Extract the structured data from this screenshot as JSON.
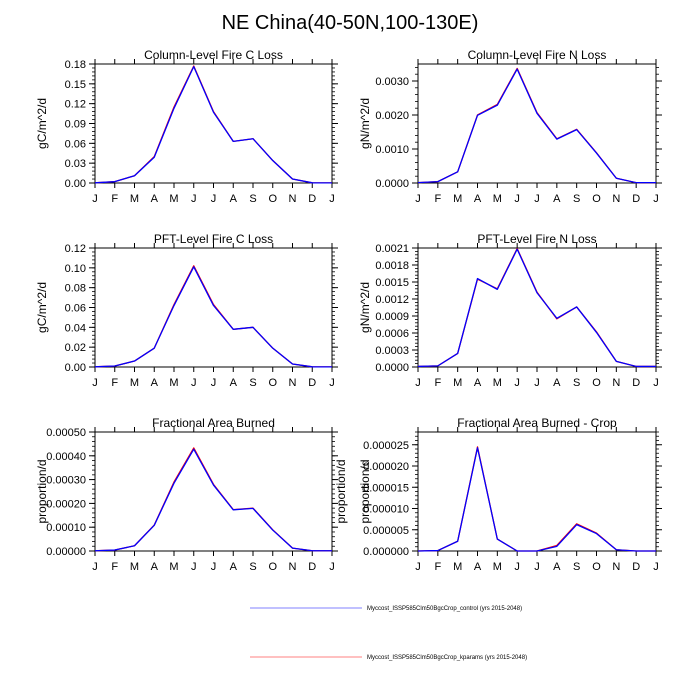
{
  "title": "NE China(40-50N,100-130E)",
  "colors": {
    "control": "#0000ff",
    "kparams": "#ff0000",
    "axis": "#000000"
  },
  "chart_data": [
    {
      "type": "line",
      "title": "Column-Level Fire C Loss",
      "ylabel": "gC/m^2/d",
      "xlabel": "",
      "x": [
        "J",
        "F",
        "M",
        "A",
        "M",
        "J",
        "J",
        "A",
        "S",
        "O",
        "N",
        "D",
        "J"
      ],
      "ylim": [
        0,
        0.18
      ],
      "yticks": [
        0.0,
        0.03,
        0.06,
        0.09,
        0.12,
        0.15,
        0.18
      ],
      "ytick_labels": [
        "0.00",
        "0.03",
        "0.06",
        "0.09",
        "0.12",
        "0.15",
        "0.18"
      ],
      "minor_per_major": 4,
      "series": [
        {
          "name": "Myccost_ISSP585Clm50BgcCrop_control (yrs 2015-2048)",
          "color": "#0000ff",
          "values": [
            0.0003,
            0.002,
            0.011,
            0.039,
            0.113,
            0.176,
            0.107,
            0.063,
            0.067,
            0.034,
            0.006,
            0.0003,
            0.0002
          ]
        },
        {
          "name": "Myccost_ISSP585Clm50BgcCrop_kparams (yrs 2015-2048)",
          "color": "#ff0000",
          "values": [
            0.0003,
            0.002,
            0.011,
            0.04,
            0.115,
            0.177,
            0.108,
            0.063,
            0.067,
            0.034,
            0.006,
            0.0003,
            0.0002
          ]
        }
      ]
    },
    {
      "type": "line",
      "title": "Column-Level Fire N Loss",
      "ylabel": "gN/m^2/d",
      "xlabel": "",
      "x": [
        "J",
        "F",
        "M",
        "A",
        "M",
        "J",
        "J",
        "A",
        "S",
        "O",
        "N",
        "D",
        "J"
      ],
      "ylim": [
        0,
        0.0035
      ],
      "yticks": [
        0.0,
        0.001,
        0.002,
        0.003
      ],
      "ytick_labels": [
        "0.0000",
        "0.0010",
        "0.0020",
        "0.0030"
      ],
      "minor_per_major": 4,
      "series": [
        {
          "name": "Myccost_ISSP585Clm50BgcCrop_control (yrs 2015-2048)",
          "color": "#0000ff",
          "values": [
            1e-05,
            4e-05,
            0.00033,
            0.00199,
            0.00229,
            0.00335,
            0.00205,
            0.00129,
            0.00157,
            0.00088,
            0.00014,
            1e-05,
            1e-05
          ]
        },
        {
          "name": "Myccost_ISSP585Clm50BgcCrop_kparams (yrs 2015-2048)",
          "color": "#ff0000",
          "values": [
            1e-05,
            4e-05,
            0.00033,
            0.002,
            0.00231,
            0.00337,
            0.00207,
            0.0013,
            0.00158,
            0.00089,
            0.00014,
            1e-05,
            1e-05
          ]
        }
      ]
    },
    {
      "type": "line",
      "title": "PFT-Level Fire C Loss",
      "ylabel": "gC/m^2/d",
      "xlabel": "",
      "x": [
        "J",
        "F",
        "M",
        "A",
        "M",
        "J",
        "J",
        "A",
        "S",
        "O",
        "N",
        "D",
        "J"
      ],
      "ylim": [
        0,
        0.12
      ],
      "yticks": [
        0.0,
        0.02,
        0.04,
        0.06,
        0.08,
        0.1,
        0.12
      ],
      "ytick_labels": [
        "0.00",
        "0.02",
        "0.04",
        "0.06",
        "0.08",
        "0.10",
        "0.12"
      ],
      "minor_per_major": 4,
      "series": [
        {
          "name": "Myccost_ISSP585Clm50BgcCrop_control (yrs 2015-2048)",
          "color": "#0000ff",
          "values": [
            0.0002,
            0.001,
            0.006,
            0.019,
            0.062,
            0.101,
            0.062,
            0.038,
            0.04,
            0.019,
            0.003,
            0.0002,
            0.0001
          ]
        },
        {
          "name": "Myccost_ISSP585Clm50BgcCrop_kparams (yrs 2015-2048)",
          "color": "#ff0000",
          "values": [
            0.0002,
            0.001,
            0.006,
            0.019,
            0.063,
            0.102,
            0.063,
            0.038,
            0.04,
            0.019,
            0.003,
            0.0002,
            0.0001
          ]
        }
      ]
    },
    {
      "type": "line",
      "title": "PFT-Level Fire N Loss",
      "ylabel": "gN/m^2/d",
      "xlabel": "",
      "x": [
        "J",
        "F",
        "M",
        "A",
        "M",
        "J",
        "J",
        "A",
        "S",
        "O",
        "N",
        "D",
        "J"
      ],
      "ylim": [
        0,
        0.0021
      ],
      "yticks": [
        0.0,
        0.0003,
        0.0006,
        0.0009,
        0.0012,
        0.0015,
        0.0018,
        0.0021
      ],
      "ytick_labels": [
        "0.0000",
        "0.0003",
        "0.0006",
        "0.0009",
        "0.0012",
        "0.0015",
        "0.0018",
        "0.0021"
      ],
      "minor_per_major": 4,
      "series": [
        {
          "name": "Myccost_ISSP585Clm50BgcCrop_control (yrs 2015-2048)",
          "color": "#0000ff",
          "values": [
            1e-05,
            2e-05,
            0.00024,
            0.00156,
            0.00137,
            0.00208,
            0.00131,
            0.00086,
            0.00106,
            0.00061,
            0.0001,
            1e-05,
            1e-05
          ]
        },
        {
          "name": "Myccost_ISSP585Clm50BgcCrop_kparams (yrs 2015-2048)",
          "color": "#ff0000",
          "values": [
            1e-05,
            2e-05,
            0.00024,
            0.00155,
            0.00138,
            0.00209,
            0.00132,
            0.00085,
            0.00106,
            0.00062,
            0.0001,
            1e-05,
            1e-05
          ]
        }
      ]
    },
    {
      "type": "line",
      "title": "Fractional Area Burned",
      "ylabel": "proportion/d",
      "ylabel_right": "proportion/d",
      "xlabel": "",
      "x": [
        "J",
        "F",
        "M",
        "A",
        "M",
        "J",
        "J",
        "A",
        "S",
        "O",
        "N",
        "D",
        "J"
      ],
      "ylim": [
        0,
        0.0005
      ],
      "yticks": [
        0.0,
        0.0001,
        0.0002,
        0.0003,
        0.0004,
        0.0005
      ],
      "ytick_labels": [
        "0.00000",
        "0.00010",
        "0.00020",
        "0.00030",
        "0.00040",
        "0.00050"
      ],
      "minor_per_major": 4,
      "series": [
        {
          "name": "Myccost_ISSP585Clm50BgcCrop_control (yrs 2015-2048)",
          "color": "#0000ff",
          "values": [
            1e-06,
            4e-06,
            2.2e-05,
            0.000108,
            0.000285,
            0.000428,
            0.000277,
            0.000173,
            0.000179,
            8.8e-05,
            1.2e-05,
            1e-06,
            1e-06
          ]
        },
        {
          "name": "Myccost_ISSP585Clm50BgcCrop_kparams (yrs 2015-2048)",
          "color": "#ff0000",
          "values": [
            1e-06,
            4e-06,
            2.2e-05,
            0.000109,
            0.00029,
            0.000433,
            0.00028,
            0.000174,
            0.00018,
            8.9e-05,
            1.2e-05,
            1e-06,
            1e-06
          ]
        }
      ]
    },
    {
      "type": "line",
      "title": "Fractional Area Burned - Crop",
      "ylabel": "proportion/d",
      "xlabel": "",
      "x": [
        "J",
        "F",
        "M",
        "A",
        "M",
        "J",
        "J",
        "A",
        "S",
        "O",
        "N",
        "D",
        "J"
      ],
      "ylim": [
        0,
        2.8e-05
      ],
      "yticks": [
        0.0,
        5e-06,
        1e-05,
        1.5e-05,
        2e-05,
        2.5e-05
      ],
      "ytick_labels": [
        "0.000000",
        "0.000005",
        "0.000010",
        "0.000015",
        "0.000020",
        "0.000025"
      ],
      "minor_per_major": 4,
      "series": [
        {
          "name": "Myccost_ISSP585Clm50BgcCrop_control (yrs 2015-2048)",
          "color": "#0000ff",
          "values": [
            0.0,
            1e-07,
            2.3e-06,
            2.43e-05,
            2.8e-06,
            0.0,
            0.0,
            1.1e-06,
            6.2e-06,
            4.1e-06,
            3e-07,
            0.0,
            0.0
          ]
        },
        {
          "name": "Myccost_ISSP585Clm50BgcCrop_kparams (yrs 2015-2048)",
          "color": "#ff0000",
          "values": [
            0.0,
            1e-07,
            2.3e-06,
            2.45e-05,
            2.8e-06,
            0.0,
            0.0,
            1.3e-06,
            6.4e-06,
            4.2e-06,
            3e-07,
            0.0,
            0.0
          ]
        }
      ]
    }
  ],
  "legend": {
    "position": "bottom-center",
    "entries": [
      {
        "label": "Myccost_ISSP585Clm50BgcCrop_control (yrs 2015-2048)",
        "color": "#8080ff"
      },
      {
        "label": "Myccost_ISSP585Clm50BgcCrop_kparams (yrs 2015-2048)",
        "color": "#ff8080"
      }
    ]
  }
}
